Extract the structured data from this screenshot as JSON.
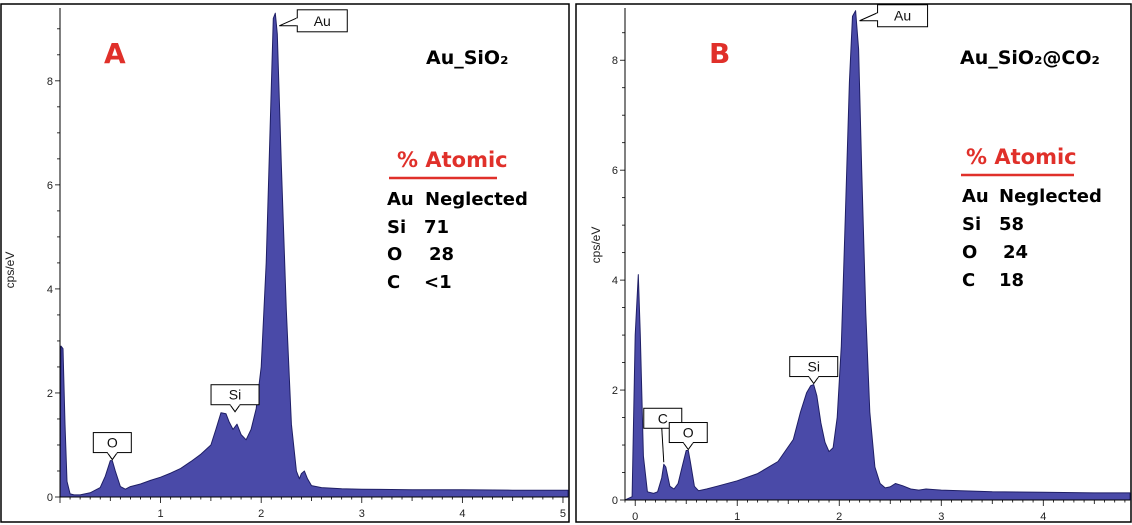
{
  "colors": {
    "fill": "#4a4aa8",
    "stroke": "#1f1f66",
    "accent": "#e0302a",
    "frame": "#000000"
  },
  "chart_data": [
    {
      "type": "area",
      "panel_label": "A",
      "sample": "Au_SiO₂",
      "xlabel": "",
      "ylabel": "cps/eV",
      "xlim": [
        0,
        5.05
      ],
      "ylim": [
        0,
        9.4
      ],
      "x_ticks": [
        "1",
        "2",
        "3",
        "4",
        "5"
      ],
      "y_ticks": [
        "0",
        "2",
        "4",
        "6",
        "8"
      ],
      "grid": false,
      "peak_labels": [
        {
          "text": "Au",
          "x": 2.14,
          "y": 9.25
        },
        {
          "text": "Si",
          "x": 1.74,
          "y": 1.62
        },
        {
          "text": "O",
          "x": 0.52,
          "y": 0.7
        }
      ],
      "composition": {
        "title": "% Atomic",
        "rows": [
          {
            "element": "Au",
            "value": "Neglected"
          },
          {
            "element": "Si",
            "value": "71"
          },
          {
            "element": "O",
            "value": "28"
          },
          {
            "element": "C",
            "value": "<1"
          }
        ]
      },
      "series": [
        {
          "x": [
            0,
            0.01,
            0.03,
            0.05,
            0.07,
            0.1,
            0.14,
            0.2,
            0.3,
            0.4,
            0.45,
            0.5,
            0.52,
            0.55,
            0.6,
            0.65,
            0.7,
            0.8,
            0.9,
            1.0,
            1.1,
            1.2,
            1.3,
            1.4,
            1.5,
            1.55,
            1.6,
            1.65,
            1.68,
            1.72,
            1.76,
            1.8,
            1.85,
            1.9,
            1.95,
            2.0,
            2.05,
            2.1,
            2.12,
            2.14,
            2.16,
            2.2,
            2.25,
            2.3,
            2.35,
            2.38,
            2.4,
            2.43,
            2.46,
            2.5,
            2.6,
            2.8,
            3.0,
            3.5,
            4.0,
            4.5,
            5.05
          ],
          "y": [
            0,
            2.9,
            2.85,
            1.4,
            0.3,
            0.06,
            0.04,
            0.04,
            0.08,
            0.18,
            0.4,
            0.7,
            0.7,
            0.5,
            0.2,
            0.15,
            0.2,
            0.25,
            0.32,
            0.38,
            0.46,
            0.55,
            0.68,
            0.82,
            1.0,
            1.3,
            1.62,
            1.6,
            1.45,
            1.3,
            1.4,
            1.2,
            1.1,
            1.3,
            1.7,
            2.5,
            4.5,
            7.8,
            9.2,
            9.3,
            8.9,
            6.4,
            3.6,
            1.4,
            0.5,
            0.35,
            0.45,
            0.5,
            0.35,
            0.22,
            0.18,
            0.16,
            0.15,
            0.14,
            0.14,
            0.13,
            0.13
          ]
        }
      ]
    },
    {
      "type": "area",
      "panel_label": "B",
      "sample": "Au_SiO₂@CO₂",
      "xlabel": "",
      "ylabel": "cps/eV",
      "xlim": [
        -0.1,
        4.85
      ],
      "ylim": [
        0,
        8.95
      ],
      "x_ticks": [
        "0",
        "1",
        "2",
        "3",
        "4"
      ],
      "y_ticks": [
        "0",
        "2",
        "4",
        "6",
        "8"
      ],
      "grid": false,
      "peak_labels": [
        {
          "text": "Au",
          "x": 2.16,
          "y": 8.9
        },
        {
          "text": "Si",
          "x": 1.75,
          "y": 2.1
        },
        {
          "text": "C",
          "x": 0.28,
          "y": 0.65
        },
        {
          "text": "O",
          "x": 0.52,
          "y": 0.9
        }
      ],
      "composition": {
        "title": "% Atomic",
        "rows": [
          {
            "element": "Au",
            "value": "Neglected"
          },
          {
            "element": "Si",
            "value": "58"
          },
          {
            "element": "O",
            "value": "24"
          },
          {
            "element": "C",
            "value": "18"
          }
        ]
      },
      "series": [
        {
          "x": [
            -0.1,
            -0.03,
            0.0,
            0.03,
            0.05,
            0.08,
            0.12,
            0.18,
            0.22,
            0.26,
            0.28,
            0.3,
            0.34,
            0.38,
            0.42,
            0.46,
            0.5,
            0.52,
            0.54,
            0.58,
            0.62,
            0.7,
            0.8,
            1.0,
            1.2,
            1.4,
            1.55,
            1.62,
            1.68,
            1.72,
            1.75,
            1.78,
            1.82,
            1.86,
            1.9,
            1.94,
            1.98,
            2.02,
            2.06,
            2.1,
            2.13,
            2.16,
            2.19,
            2.22,
            2.26,
            2.3,
            2.35,
            2.4,
            2.45,
            2.5,
            2.55,
            2.62,
            2.7,
            2.78,
            2.85,
            3.0,
            3.5,
            4.0,
            4.5,
            4.85
          ],
          "y": [
            0,
            0.06,
            3.0,
            4.1,
            3.0,
            0.8,
            0.15,
            0.12,
            0.15,
            0.4,
            0.65,
            0.6,
            0.25,
            0.2,
            0.3,
            0.6,
            0.9,
            0.9,
            0.7,
            0.25,
            0.17,
            0.2,
            0.25,
            0.35,
            0.48,
            0.7,
            1.1,
            1.6,
            1.95,
            2.08,
            2.1,
            1.9,
            1.4,
            1.05,
            0.88,
            0.95,
            1.5,
            2.8,
            5.2,
            7.6,
            8.8,
            8.9,
            8.2,
            6.0,
            3.4,
            1.6,
            0.6,
            0.3,
            0.22,
            0.24,
            0.3,
            0.26,
            0.2,
            0.18,
            0.2,
            0.18,
            0.15,
            0.14,
            0.13,
            0.13
          ]
        }
      ]
    }
  ]
}
